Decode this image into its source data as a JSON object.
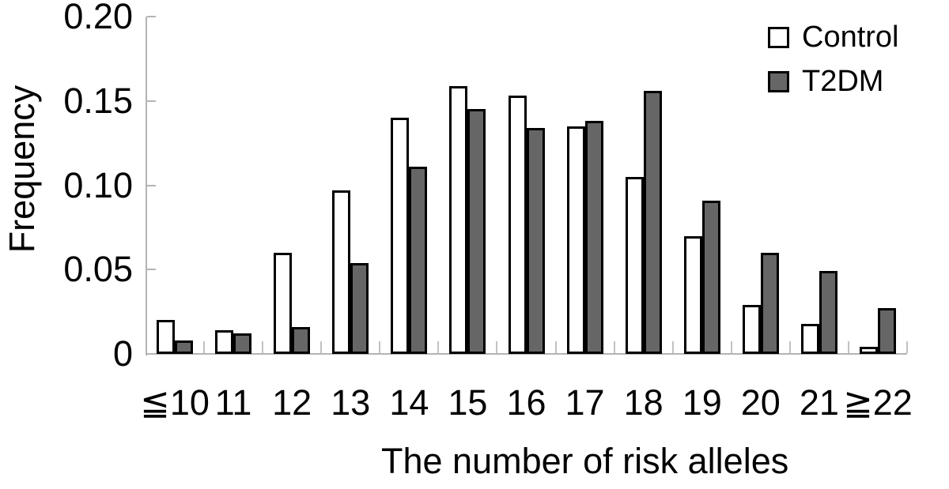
{
  "chart_data": {
    "type": "bar",
    "title": "",
    "xlabel": "The number of risk alleles",
    "ylabel": "Frequency",
    "categories": [
      "≦10",
      "11",
      "12",
      "13",
      "14",
      "15",
      "16",
      "17",
      "18",
      "19",
      "20",
      "21",
      "≧22"
    ],
    "series": [
      {
        "name": "Control",
        "color": "#ffffff",
        "values": [
          0.02,
          0.014,
          0.06,
          0.097,
          0.14,
          0.159,
          0.153,
          0.135,
          0.105,
          0.07,
          0.029,
          0.018,
          0.004
        ]
      },
      {
        "name": "T2DM",
        "color": "#666666",
        "values": [
          0.008,
          0.012,
          0.016,
          0.054,
          0.111,
          0.145,
          0.134,
          0.138,
          0.156,
          0.091,
          0.06,
          0.049,
          0.027
        ]
      }
    ],
    "ylim": [
      0,
      0.2
    ],
    "yticks": [
      0,
      0.05,
      0.1,
      0.15,
      0.2
    ],
    "ytick_labels": [
      "0",
      "0.05",
      "0.10",
      "0.15",
      "0.20"
    ],
    "legend_position": "top-right",
    "grid": false,
    "bar_border_color": "#000000",
    "axis_color": "#b4b4b4"
  }
}
